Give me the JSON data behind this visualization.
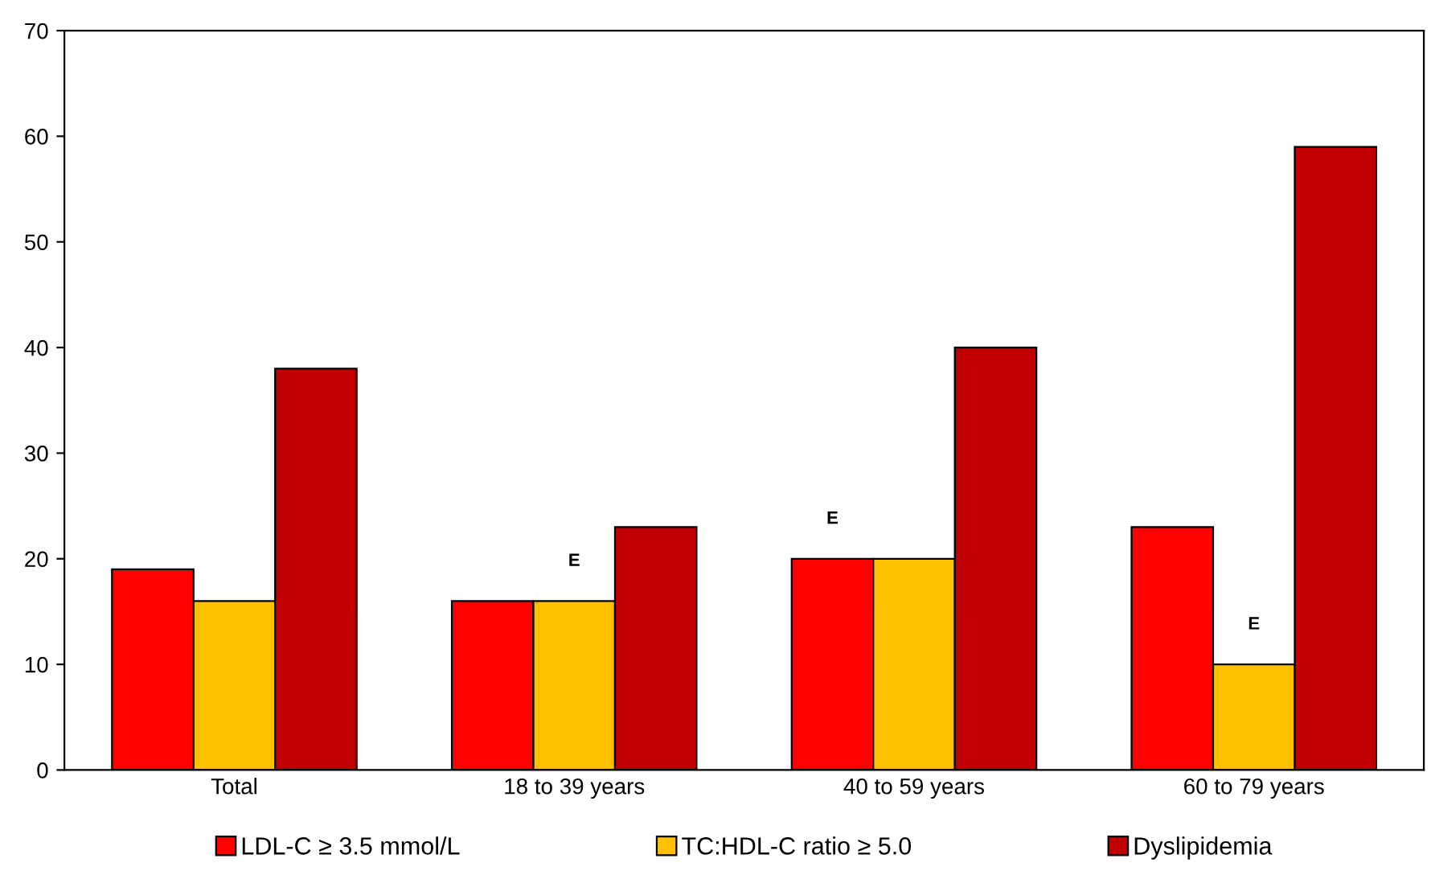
{
  "chart_data": {
    "type": "bar",
    "categories": [
      "Total",
      "18 to 39 years",
      "40 to 59 years",
      "60 to 79 years"
    ],
    "series": [
      {
        "name": "LDL-C ≥ 3.5 mmol/L",
        "color": "#ff0000",
        "values": [
          19,
          16,
          20,
          23
        ],
        "value_labels": [
          null,
          null,
          "E",
          null
        ]
      },
      {
        "name": "TC:HDL-C ratio ≥ 5.0",
        "color": "#ffc000",
        "values": [
          16,
          16,
          20,
          10
        ],
        "value_labels": [
          null,
          "E",
          null,
          "E"
        ]
      },
      {
        "name": "Dyslipidemia",
        "color": "#c00000",
        "values": [
          38,
          23,
          40,
          59
        ]
      }
    ],
    "ylim": [
      0,
      70
    ],
    "yticks": [
      0,
      10,
      20,
      30,
      40,
      50,
      60,
      70
    ],
    "grid": false,
    "legend": "bottom"
  }
}
